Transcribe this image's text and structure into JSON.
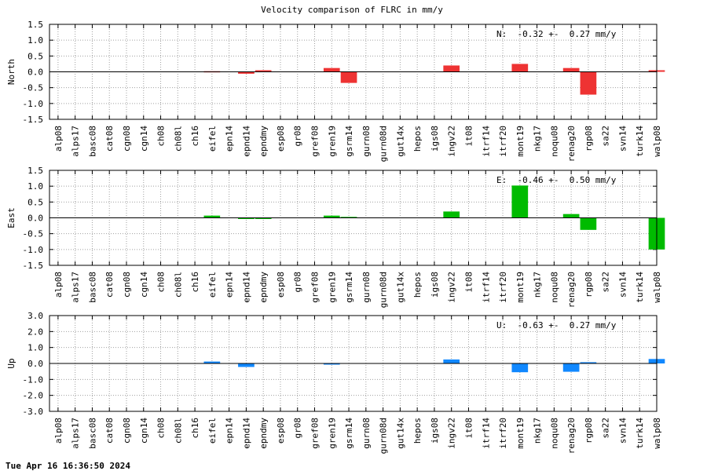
{
  "timestamp": "Tue Apr 16 16:36:50 2024",
  "chart_data": {
    "type": "bar",
    "title": "Velocity comparison of FLRC in mm/y",
    "categories": [
      "alp08",
      "alps17",
      "basc08",
      "cat08",
      "cgn08",
      "cgn14",
      "ch08",
      "ch08l",
      "ch16",
      "eifel",
      "epn14",
      "epnd14",
      "epndmy",
      "esp08",
      "gr08",
      "gref08",
      "gren19",
      "gsrm14",
      "gurn08",
      "gurn08d",
      "gut14x",
      "hepos",
      "igs08",
      "ingv22",
      "it08",
      "itrf14",
      "itrf20",
      "mont19",
      "nkg17",
      "noqu08",
      "renag20",
      "rgp08",
      "sa22",
      "svn14",
      "turk14",
      "walp08"
    ],
    "panels": [
      {
        "name": "North",
        "ylabel": "North",
        "color": "#ee3333",
        "ylim": [
          -1.5,
          1.5
        ],
        "yticks": [
          -1.5,
          -1.0,
          -0.5,
          0.0,
          0.5,
          1.0,
          1.5
        ],
        "ytick_labels": [
          "-1.5",
          "-1.0",
          "-0.5",
          "0.0",
          "0.5",
          "1.0",
          "1.5"
        ],
        "stat_text": "N:  -0.32 +-  0.27 mm/y",
        "values": [
          0,
          0,
          0,
          0,
          0,
          0,
          0,
          0,
          0,
          0.02,
          0,
          -0.06,
          0.05,
          0,
          0,
          0,
          0.12,
          -0.35,
          0,
          0,
          0,
          0,
          0,
          0.2,
          0,
          0,
          0,
          0.25,
          0,
          0,
          0.12,
          -0.72,
          0,
          0,
          0,
          0.05
        ]
      },
      {
        "name": "East",
        "ylabel": "East",
        "color": "#00bb00",
        "ylim": [
          -1.5,
          1.5
        ],
        "yticks": [
          -1.5,
          -1.0,
          -0.5,
          0.0,
          0.5,
          1.0,
          1.5
        ],
        "ytick_labels": [
          "-1.5",
          "-1.0",
          "-0.5",
          "0.0",
          "0.5",
          "1.0",
          "1.5"
        ],
        "stat_text": "E:  -0.46 +-  0.50 mm/y",
        "values": [
          0,
          0,
          0,
          0,
          0,
          0,
          0,
          0,
          0,
          0.07,
          0,
          -0.03,
          -0.03,
          0,
          0,
          0,
          0.07,
          0.03,
          0,
          0,
          0,
          0,
          0,
          0.2,
          0,
          0,
          0,
          1.02,
          0,
          0,
          0.12,
          -0.38,
          0,
          0,
          0,
          -1.0
        ]
      },
      {
        "name": "Up",
        "ylabel": "Up",
        "color": "#1188ff",
        "ylim": [
          -3.0,
          3.0
        ],
        "yticks": [
          -3.0,
          -2.0,
          -1.0,
          0.0,
          1.0,
          2.0,
          3.0
        ],
        "ytick_labels": [
          "-3.0",
          "-2.0",
          "-1.0",
          "0.0",
          "1.0",
          "2.0",
          "3.0"
        ],
        "stat_text": "U:  -0.63 +-  0.27 mm/y",
        "values": [
          0,
          0,
          0,
          0,
          0,
          0,
          0,
          0,
          0,
          0.12,
          0,
          -0.22,
          0,
          0,
          0,
          0,
          -0.06,
          0,
          0,
          0,
          0,
          0,
          0,
          0.25,
          0,
          0,
          0,
          -0.55,
          0,
          0,
          -0.52,
          0.08,
          0,
          0,
          0,
          0.28
        ]
      }
    ]
  }
}
